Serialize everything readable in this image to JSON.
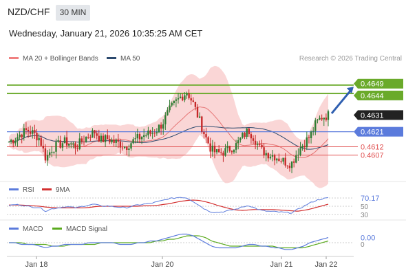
{
  "header": {
    "symbol": "NZD/CHF",
    "timeframe": "30 MIN",
    "datetime": "Wednesday, January 21, 2026 10:35:25 AM CET"
  },
  "credit": "Research © 2026 Trading Central",
  "colors": {
    "up": "#2e7d32",
    "down": "#c62828",
    "bollinger": "#f8c8c8",
    "ma20": "#e57373",
    "ma50": "#2c4a6e",
    "support_line": "#5b7bdc",
    "resistance_line": "#6aaa2a",
    "level_line": "#e05050",
    "rsi": "#5b7bdc",
    "rsi_ma": "#d32f2f",
    "macd": "#5b7bdc",
    "macd_signal": "#5aaa1e",
    "arrow": "#2f5fb0",
    "price_tag": "#222222"
  },
  "chart_data": [
    {
      "type": "candlestick",
      "legend": [
        {
          "label": "MA 20 + Bollinger Bands",
          "color": "#e57373"
        },
        {
          "label": "MA 50",
          "color": "#2c4a6e"
        }
      ],
      "x_ticks": [
        "Jan 18",
        "Jan 20",
        "Jan 21",
        "Jan 22"
      ],
      "ylim": [
        0.4592,
        0.466
      ],
      "levels": [
        {
          "value": 0.4649,
          "label": "0.4649",
          "style": "resistance"
        },
        {
          "value": 0.4644,
          "label": "0.4644",
          "style": "resistance"
        },
        {
          "value": 0.4631,
          "label": "0.4631",
          "style": "last"
        },
        {
          "value": 0.4621,
          "label": "0.4621",
          "style": "support"
        },
        {
          "value": 0.4612,
          "label": "0.4612",
          "style": "minor"
        },
        {
          "value": 0.4607,
          "label": "0.4607",
          "style": "minor"
        }
      ],
      "candle_key_values": [
        0.4615,
        0.4617,
        0.462,
        0.4622,
        0.462,
        0.4617,
        0.4605,
        0.4611,
        0.4613,
        0.4615,
        0.4614,
        0.4612,
        0.4616,
        0.4619,
        0.4621,
        0.4616,
        0.4617,
        0.4615,
        0.4614,
        0.4612,
        0.4615,
        0.4617,
        0.4619,
        0.462,
        0.4622,
        0.4626,
        0.4633,
        0.4638,
        0.4642,
        0.4645,
        0.4638,
        0.4628,
        0.4618,
        0.461,
        0.4608,
        0.4609,
        0.4611,
        0.4613,
        0.4618,
        0.4622,
        0.4617,
        0.461,
        0.4608,
        0.4607,
        0.4605,
        0.4603,
        0.4602,
        0.4609,
        0.4614,
        0.4618,
        0.4626,
        0.463,
        0.4631
      ],
      "arrow": {
        "from": 0.4632,
        "to": 0.4648
      }
    },
    {
      "type": "line",
      "legend": [
        {
          "label": "RSI",
          "color": "#5b7bdc"
        },
        {
          "label": "9MA",
          "color": "#d32f2f"
        }
      ],
      "value_label": "70.17",
      "level_labels": [
        "50",
        "30"
      ],
      "ylim": [
        20,
        80
      ],
      "rsi": [
        52,
        54,
        53,
        50,
        48,
        47,
        38,
        44,
        46,
        49,
        48,
        46,
        50,
        53,
        55,
        50,
        51,
        49,
        48,
        46,
        50,
        53,
        55,
        57,
        60,
        64,
        68,
        70,
        72,
        70,
        62,
        52,
        42,
        36,
        35,
        37,
        40,
        43,
        48,
        52,
        46,
        40,
        38,
        37,
        36,
        35,
        34,
        42,
        50,
        58,
        64,
        68,
        70.17
      ],
      "ma9": [
        53,
        53,
        53,
        52,
        51,
        50,
        48,
        47,
        46,
        46,
        46,
        46,
        46,
        47,
        49,
        50,
        50,
        50,
        50,
        50,
        50,
        50,
        51,
        51,
        52,
        54,
        56,
        59,
        62,
        64,
        65,
        64,
        61,
        57,
        52,
        48,
        44,
        41,
        40,
        41,
        42,
        42,
        42,
        42,
        41,
        40,
        39,
        38,
        40,
        43,
        47,
        51,
        55
      ]
    },
    {
      "type": "line",
      "legend": [
        {
          "label": "MACD",
          "color": "#5b7bdc"
        },
        {
          "label": "MACD Signal",
          "color": "#5aaa1e"
        }
      ],
      "value_labels": [
        "0.00",
        "0"
      ],
      "ylim": [
        -0.0006,
        0.0006
      ],
      "macd": [
        0.0,
        0.0,
        -0.0001,
        -0.0001,
        -0.0001,
        -0.0002,
        -0.0003,
        -0.0002,
        -0.0002,
        -0.0001,
        -0.0001,
        -0.0001,
        -0.0001,
        0.0,
        0.0,
        0.0,
        0.0,
        0.0,
        -0.0001,
        -0.0001,
        -0.0001,
        0.0,
        0.0,
        0.0001,
        0.0001,
        0.0002,
        0.0003,
        0.0004,
        0.0005,
        0.0005,
        0.0004,
        0.0002,
        0.0,
        -0.0002,
        -0.0003,
        -0.0003,
        -0.0003,
        -0.0003,
        -0.0002,
        -0.0001,
        -0.0001,
        -0.0002,
        -0.0002,
        -0.0003,
        -0.0003,
        -0.0004,
        -0.0004,
        -0.0003,
        -0.0002,
        0.0,
        0.0001,
        0.0002,
        0.0003
      ],
      "signal": [
        0.0,
        0.0,
        0.0,
        -0.0001,
        -0.0001,
        -0.0001,
        -0.0001,
        -0.0002,
        -0.0002,
        -0.0002,
        -0.0001,
        -0.0001,
        -0.0001,
        -0.0001,
        -0.0001,
        0.0,
        0.0,
        0.0,
        0.0,
        0.0,
        0.0,
        0.0,
        0.0,
        0.0,
        0.0001,
        0.0001,
        0.0002,
        0.0002,
        0.0003,
        0.0004,
        0.0004,
        0.0004,
        0.0003,
        0.0001,
        0.0,
        -0.0001,
        -0.0002,
        -0.0002,
        -0.0002,
        -0.0002,
        -0.0002,
        -0.0002,
        -0.0002,
        -0.0002,
        -0.0003,
        -0.0003,
        -0.0003,
        -0.0003,
        -0.0003,
        -0.0002,
        -0.0001,
        0.0,
        0.0001
      ]
    }
  ]
}
